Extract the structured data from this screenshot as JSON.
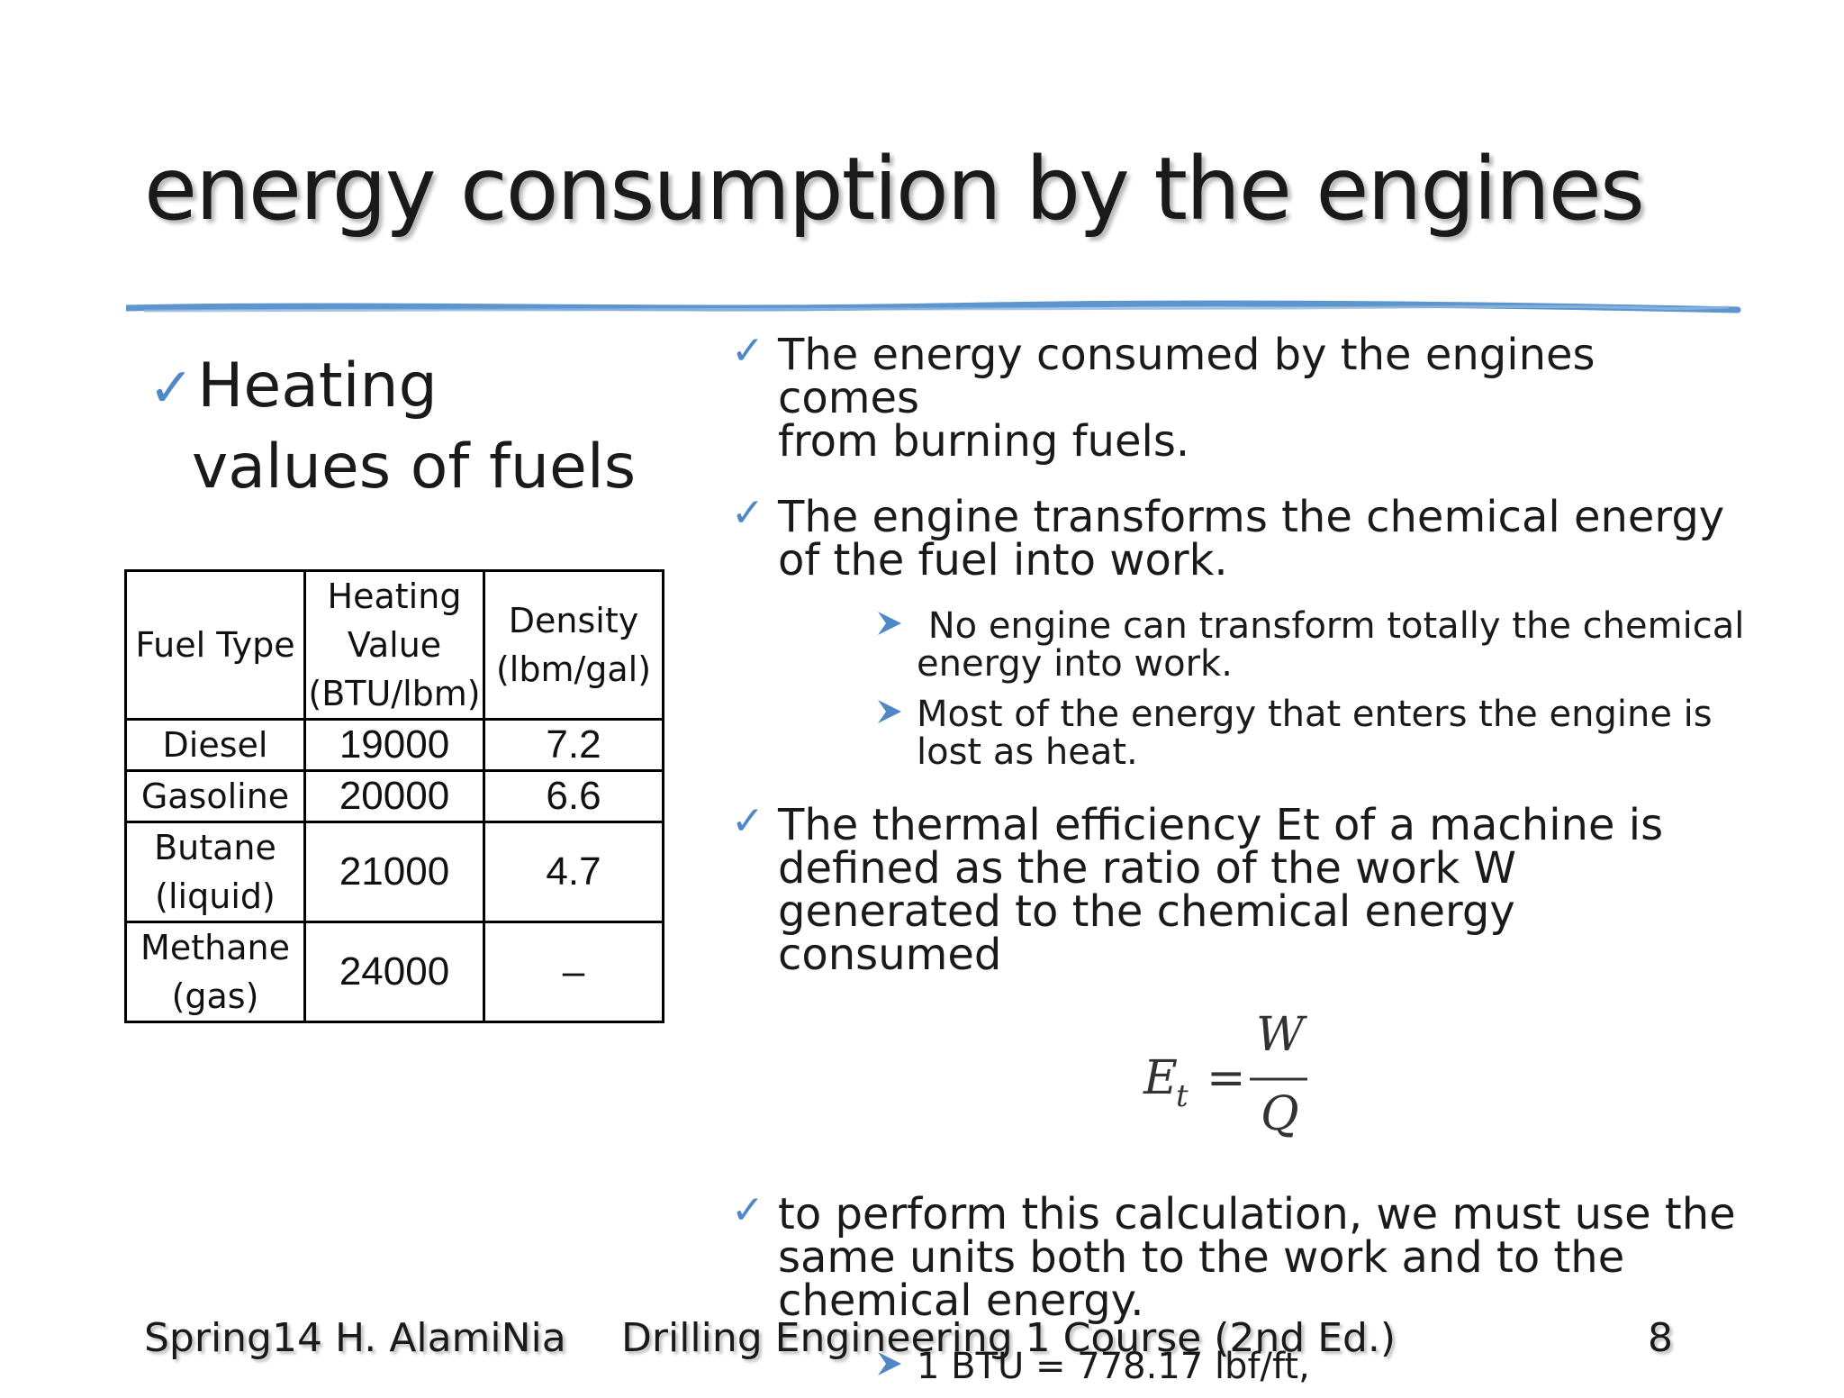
{
  "title": "energy consumption by the engines",
  "left": {
    "heading_line1": "Heating",
    "heading_line2": "values of fuels"
  },
  "table": {
    "headers": [
      "Fuel Type",
      [
        "Heating",
        "Value",
        "(BTU/lbm)"
      ],
      [
        "Density",
        "(lbm/gal)"
      ]
    ],
    "rows": [
      {
        "name": [
          "Diesel"
        ],
        "heating": "19000",
        "density": "7.2"
      },
      {
        "name": [
          "Gasoline"
        ],
        "heating": "20000",
        "density": "6.6"
      },
      {
        "name": [
          "Butane",
          "(liquid)"
        ],
        "heating": "21000",
        "density": "4.7"
      },
      {
        "name": [
          "Methane",
          "(gas)"
        ],
        "heating": "24000",
        "density": "–"
      }
    ]
  },
  "bullets": {
    "b1": [
      "The energy consumed by the engines comes",
      "from burning fuels."
    ],
    "b2": [
      "The engine transforms the chemical energy",
      "of the fuel into work."
    ],
    "b2_sub1": [
      " No engine can transform totally the chemical",
      "energy into work."
    ],
    "b2_sub2": [
      "Most of the energy that enters the engine is",
      "lost as heat."
    ],
    "b3": [
      "The thermal efficiency Et of a machine is",
      "defined as the ratio of the work W",
      "generated to the chemical energy consumed"
    ],
    "b4": [
      "to perform this calculation, we must use the",
      "same units both to the work and to the",
      "chemical energy."
    ],
    "b4_sub1": [
      "1 BTU = 778.17 lbf/ft,"
    ]
  },
  "formula": {
    "lhs": "E",
    "sub": "t",
    "eq": "=",
    "num": "W",
    "den": "Q"
  },
  "footer": {
    "left": "Spring14 H. AlamiNia",
    "center": "Drilling Engineering 1 Course (2nd Ed.)",
    "page": "8"
  },
  "colors": {
    "accent": "#4f88c6",
    "text": "#1a1a1a"
  },
  "icons": {
    "check": "check-icon",
    "arrow": "arrow-right-icon"
  }
}
